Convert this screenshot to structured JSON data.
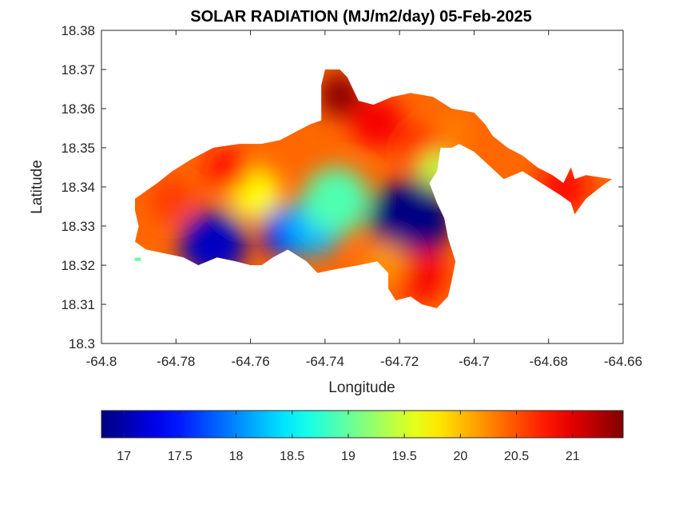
{
  "chart_data": {
    "type": "heatmap",
    "title": "SOLAR RADIATION (MJ/m2/day) 05-Feb-2025",
    "xlabel": "Longitude",
    "ylabel": "Latitude",
    "xlim": [
      -64.8,
      -64.66
    ],
    "ylim": [
      18.3,
      18.38
    ],
    "x_ticks": [
      -64.8,
      -64.78,
      -64.76,
      -64.74,
      -64.72,
      -64.7,
      -64.68,
      -64.66
    ],
    "y_ticks": [
      18.3,
      18.31,
      18.32,
      18.33,
      18.34,
      18.35,
      18.36,
      18.37,
      18.38
    ],
    "x_tick_labels": [
      "-64.8",
      "-64.78",
      "-64.76",
      "-64.74",
      "-64.72",
      "-64.7",
      "-64.68",
      "-64.66"
    ],
    "y_tick_labels": [
      "18.3",
      "18.31",
      "18.32",
      "18.33",
      "18.34",
      "18.35",
      "18.36",
      "18.37",
      "18.38"
    ],
    "colormap": "jet",
    "colorbar": {
      "orientation": "horizontal",
      "range": [
        16.8,
        21.45
      ],
      "ticks": [
        17,
        17.5,
        18,
        18.5,
        19,
        19.5,
        20,
        20.5,
        21
      ],
      "tick_labels": [
        "17",
        "17.5",
        "18",
        "18.5",
        "19",
        "19.5",
        "20",
        "20.5",
        "21"
      ]
    },
    "grid": false,
    "region": [
      [
        -64.791,
        18.337
      ],
      [
        -64.785,
        18.341
      ],
      [
        -64.781,
        18.344
      ],
      [
        -64.776,
        18.347
      ],
      [
        -64.77,
        18.35
      ],
      [
        -64.763,
        18.351
      ],
      [
        -64.757,
        18.351
      ],
      [
        -64.752,
        18.352
      ],
      [
        -64.748,
        18.354
      ],
      [
        -64.744,
        18.356
      ],
      [
        -64.741,
        18.357
      ],
      [
        -64.741,
        18.366
      ],
      [
        -64.74,
        18.37
      ],
      [
        -64.736,
        18.37
      ],
      [
        -64.734,
        18.368
      ],
      [
        -64.731,
        18.362
      ],
      [
        -64.727,
        18.361
      ],
      [
        -64.722,
        18.363
      ],
      [
        -64.717,
        18.364
      ],
      [
        -64.711,
        18.363
      ],
      [
        -64.706,
        18.36
      ],
      [
        -64.7,
        18.359
      ],
      [
        -64.697,
        18.356
      ],
      [
        -64.695,
        18.353
      ],
      [
        -64.691,
        18.35
      ],
      [
        -64.687,
        18.348
      ],
      [
        -64.683,
        18.345
      ],
      [
        -64.679,
        18.343
      ],
      [
        -64.676,
        18.341
      ],
      [
        -64.674,
        18.345
      ],
      [
        -64.673,
        18.342
      ],
      [
        -64.67,
        18.343
      ],
      [
        -64.663,
        18.342
      ],
      [
        -64.666,
        18.34
      ],
      [
        -64.67,
        18.337
      ],
      [
        -64.673,
        18.333
      ],
      [
        -64.674,
        18.336
      ],
      [
        -64.677,
        18.338
      ],
      [
        -64.687,
        18.344
      ],
      [
        -64.692,
        18.342
      ],
      [
        -64.7,
        18.349
      ],
      [
        -64.704,
        18.351
      ],
      [
        -64.706,
        18.35
      ],
      [
        -64.709,
        18.35
      ],
      [
        -64.71,
        18.344
      ],
      [
        -64.712,
        18.341
      ],
      [
        -64.71,
        18.336
      ],
      [
        -64.708,
        18.332
      ],
      [
        -64.707,
        18.327
      ],
      [
        -64.705,
        18.321
      ],
      [
        -64.706,
        18.316
      ],
      [
        -64.707,
        18.312
      ],
      [
        -64.71,
        18.309
      ],
      [
        -64.714,
        18.31
      ],
      [
        -64.717,
        18.312
      ],
      [
        -64.721,
        18.311
      ],
      [
        -64.723,
        18.314
      ],
      [
        -64.723,
        18.318
      ],
      [
        -64.726,
        18.321
      ],
      [
        -64.731,
        18.32
      ],
      [
        -64.737,
        18.319
      ],
      [
        -64.742,
        18.318
      ],
      [
        -64.745,
        18.321
      ],
      [
        -64.75,
        18.324
      ],
      [
        -64.754,
        18.322
      ],
      [
        -64.757,
        18.32
      ],
      [
        -64.76,
        18.32
      ],
      [
        -64.764,
        18.321
      ],
      [
        -64.769,
        18.322
      ],
      [
        -64.774,
        18.32
      ],
      [
        -64.778,
        18.322
      ],
      [
        -64.783,
        18.323
      ],
      [
        -64.788,
        18.324
      ],
      [
        -64.791,
        18.326
      ],
      [
        -64.79,
        18.33
      ],
      [
        -64.791,
        18.334
      ]
    ],
    "hotspots": [
      {
        "x": -64.717,
        "y": 18.3315,
        "value": 16.8,
        "r": 0.011
      },
      {
        "x": -64.77,
        "y": 18.3255,
        "value": 17.1,
        "r": 0.009
      },
      {
        "x": -64.75,
        "y": 18.3285,
        "value": 17.4,
        "r": 0.007
      },
      {
        "x": -64.743,
        "y": 18.33,
        "value": 18.2,
        "r": 0.008
      },
      {
        "x": -64.737,
        "y": 18.3365,
        "value": 18.9,
        "r": 0.009
      },
      {
        "x": -64.759,
        "y": 18.3385,
        "value": 19.7,
        "r": 0.007
      },
      {
        "x": -64.781,
        "y": 18.3365,
        "value": 20.6,
        "r": 0.006
      },
      {
        "x": -64.766,
        "y": 18.3445,
        "value": 20.8,
        "r": 0.006
      },
      {
        "x": -64.736,
        "y": 18.3635,
        "value": 21.4,
        "r": 0.006
      },
      {
        "x": -64.726,
        "y": 18.3565,
        "value": 20.9,
        "r": 0.007
      },
      {
        "x": -64.713,
        "y": 18.3495,
        "value": 20.7,
        "r": 0.007
      },
      {
        "x": -64.706,
        "y": 18.3545,
        "value": 20.3,
        "r": 0.005
      },
      {
        "x": -64.71,
        "y": 18.3445,
        "value": 19.4,
        "r": 0.005
      },
      {
        "x": -64.715,
        "y": 18.3175,
        "value": 20.9,
        "r": 0.007
      },
      {
        "x": -64.724,
        "y": 18.3205,
        "value": 20.2,
        "r": 0.006
      },
      {
        "x": -64.676,
        "y": 18.3395,
        "value": 20.8,
        "r": 0.007
      }
    ],
    "islets": [
      {
        "x": -64.7907,
        "y": 18.3215,
        "value": 19.0
      }
    ]
  }
}
